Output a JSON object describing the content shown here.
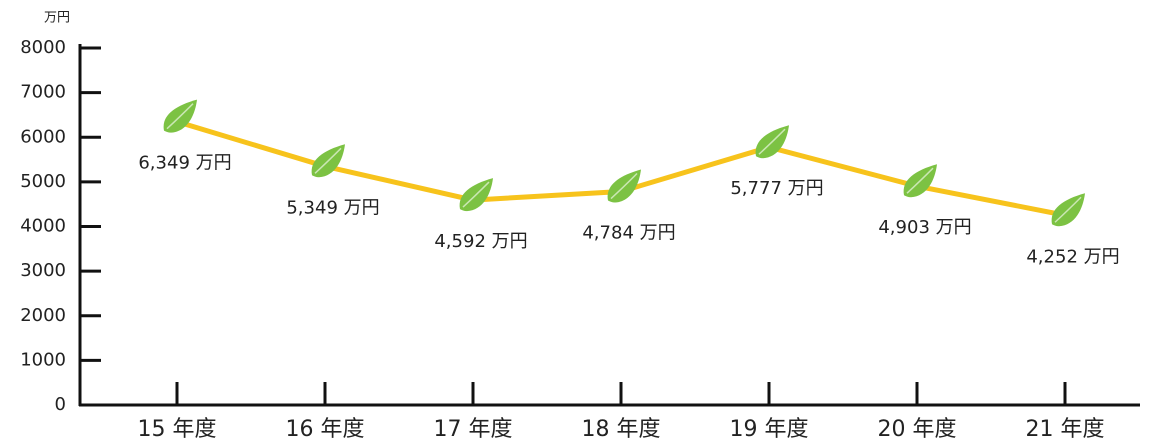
{
  "chart_data": {
    "type": "line",
    "unit_label": "万円",
    "categories": [
      "15 年度",
      "16 年度",
      "17 年度",
      "18 年度",
      "19 年度",
      "20 年度",
      "21 年度"
    ],
    "values": [
      6349,
      5349,
      4592,
      4784,
      5777,
      4903,
      4252
    ],
    "value_labels": [
      "6,349 万円",
      "5,349 万円",
      "4,592 万円",
      "4,784 万円",
      "5,777 万円",
      "4,903 万円",
      "4,252 万円"
    ],
    "color": "#f7c31c",
    "marker_color": "#7cc243",
    "ylim": [
      0,
      8000
    ],
    "yticks": [
      0,
      1000,
      2000,
      3000,
      4000,
      5000,
      6000,
      7000,
      8000
    ]
  }
}
